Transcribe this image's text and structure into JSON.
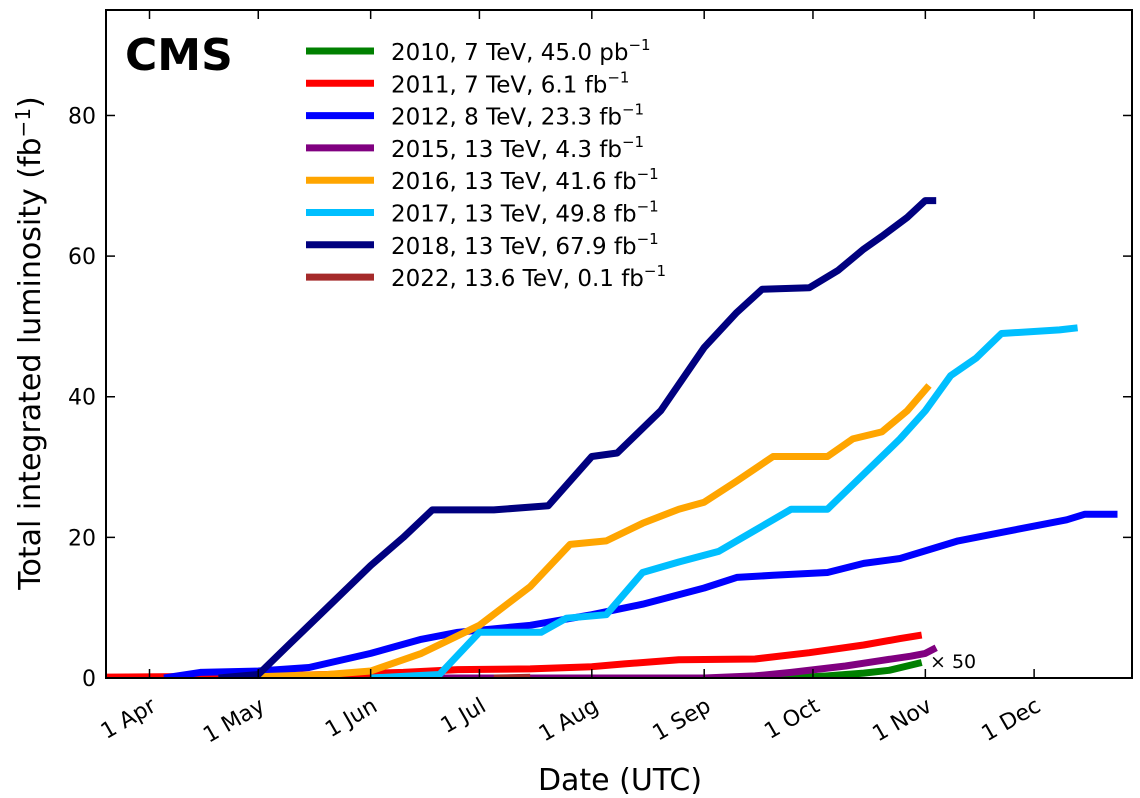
{
  "chart_data": {
    "type": "line",
    "label": "CMS",
    "xlabel": "Date (UTC)",
    "ylabel": "Total integrated luminosity (fb",
    "ylabel_sup": "−1",
    "ylabel_close": ")",
    "xlim": [
      "2000-03-20",
      "2000-12-28"
    ],
    "ylim": [
      0,
      95
    ],
    "x_ticks": [
      {
        "date": "2000-04-01",
        "label": "1 Apr"
      },
      {
        "date": "2000-05-01",
        "label": "1 May"
      },
      {
        "date": "2000-06-01",
        "label": "1 Jun"
      },
      {
        "date": "2000-07-01",
        "label": "1 Jul"
      },
      {
        "date": "2000-08-01",
        "label": "1 Aug"
      },
      {
        "date": "2000-09-01",
        "label": "1 Sep"
      },
      {
        "date": "2000-10-01",
        "label": "1 Oct"
      },
      {
        "date": "2000-11-01",
        "label": "1 Nov"
      },
      {
        "date": "2000-12-01",
        "label": "1 Dec"
      }
    ],
    "y_ticks": [
      0,
      20,
      40,
      60,
      80
    ],
    "legend_placement": "top",
    "annotation": "× 50",
    "series": [
      {
        "name": "2010, 7 TeV, 45.0 pb",
        "unit_sup": "−1",
        "color": "#008000",
        "points": [
          [
            "2000-03-30",
            0
          ],
          [
            "2000-09-25",
            0
          ],
          [
            "2000-10-05",
            0.3
          ],
          [
            "2000-10-15",
            0.7
          ],
          [
            "2000-10-22",
            1.1
          ],
          [
            "2000-10-27",
            1.7
          ],
          [
            "2000-10-31",
            2.2
          ]
        ]
      },
      {
        "name": "2011, 7 TeV, 6.1 fb",
        "unit_sup": "−1",
        "color": "#ff0000",
        "points": [
          [
            "2000-03-13",
            0.1
          ],
          [
            "2000-05-03",
            0.3
          ],
          [
            "2000-05-20",
            0.5
          ],
          [
            "2000-06-10",
            0.8
          ],
          [
            "2000-06-25",
            1.2
          ],
          [
            "2000-07-15",
            1.3
          ],
          [
            "2000-08-01",
            1.6
          ],
          [
            "2000-08-10",
            2.0
          ],
          [
            "2000-08-25",
            2.6
          ],
          [
            "2000-09-15",
            2.7
          ],
          [
            "2000-09-30",
            3.6
          ],
          [
            "2000-10-15",
            4.7
          ],
          [
            "2000-10-25",
            5.6
          ],
          [
            "2000-10-31",
            6.1
          ]
        ]
      },
      {
        "name": "2012, 8 TeV, 23.3 fb",
        "unit_sup": "−1",
        "color": "#0000ff",
        "points": [
          [
            "2000-04-05",
            0
          ],
          [
            "2000-04-15",
            0.8
          ],
          [
            "2000-05-01",
            1.0
          ],
          [
            "2000-05-15",
            1.5
          ],
          [
            "2000-06-01",
            3.5
          ],
          [
            "2000-06-15",
            5.5
          ],
          [
            "2000-06-25",
            6.5
          ],
          [
            "2000-07-01",
            6.8
          ],
          [
            "2000-07-15",
            7.5
          ],
          [
            "2000-08-01",
            9.0
          ],
          [
            "2000-08-15",
            10.5
          ],
          [
            "2000-09-01",
            12.8
          ],
          [
            "2000-09-10",
            14.3
          ],
          [
            "2000-09-20",
            14.6
          ],
          [
            "2000-10-05",
            15.0
          ],
          [
            "2000-10-15",
            16.3
          ],
          [
            "2000-10-25",
            17.0
          ],
          [
            "2000-11-10",
            19.5
          ],
          [
            "2000-11-25",
            21.0
          ],
          [
            "2000-12-10",
            22.5
          ],
          [
            "2000-12-15",
            23.3
          ],
          [
            "2000-12-24",
            23.3
          ]
        ]
      },
      {
        "name": "2015, 13 TeV, 4.3 fb",
        "unit_sup": "−1",
        "color": "#800080",
        "points": [
          [
            "2000-06-01",
            0
          ],
          [
            "2000-09-01",
            0
          ],
          [
            "2000-09-15",
            0.3
          ],
          [
            "2000-09-25",
            0.8
          ],
          [
            "2000-10-10",
            1.7
          ],
          [
            "2000-10-20",
            2.5
          ],
          [
            "2000-10-28",
            3.1
          ],
          [
            "2000-11-01",
            3.5
          ],
          [
            "2000-11-04",
            4.3
          ]
        ]
      },
      {
        "name": "2016, 13 TeV, 41.6 fb",
        "unit_sup": "−1",
        "color": "#ffa500",
        "points": [
          [
            "2000-04-20",
            0
          ],
          [
            "2000-05-20",
            0.5
          ],
          [
            "2000-06-01",
            1.0
          ],
          [
            "2000-06-15",
            3.5
          ],
          [
            "2000-07-01",
            7.5
          ],
          [
            "2000-07-15",
            13.0
          ],
          [
            "2000-07-26",
            19.0
          ],
          [
            "2000-08-05",
            19.5
          ],
          [
            "2000-08-15",
            22.0
          ],
          [
            "2000-08-25",
            24.0
          ],
          [
            "2000-09-01",
            25.0
          ],
          [
            "2000-09-10",
            28.0
          ],
          [
            "2000-09-20",
            31.5
          ],
          [
            "2000-10-05",
            31.5
          ],
          [
            "2000-10-12",
            34.0
          ],
          [
            "2000-10-20",
            35.0
          ],
          [
            "2000-10-27",
            38.0
          ],
          [
            "2000-11-02",
            41.6
          ]
        ]
      },
      {
        "name": "2017, 13 TeV, 49.8 fb",
        "unit_sup": "−1",
        "color": "#00bfff",
        "points": [
          [
            "2000-06-01",
            0
          ],
          [
            "2000-06-20",
            0.5
          ],
          [
            "2000-07-01",
            6.5
          ],
          [
            "2000-07-18",
            6.5
          ],
          [
            "2000-07-25",
            8.5
          ],
          [
            "2000-08-05",
            9.0
          ],
          [
            "2000-08-15",
            15.0
          ],
          [
            "2000-08-25",
            16.5
          ],
          [
            "2000-09-05",
            18.0
          ],
          [
            "2000-09-15",
            21.0
          ],
          [
            "2000-09-25",
            24.0
          ],
          [
            "2000-10-05",
            24.0
          ],
          [
            "2000-10-15",
            29.0
          ],
          [
            "2000-10-25",
            34.0
          ],
          [
            "2000-11-01",
            38.0
          ],
          [
            "2000-11-08",
            43.0
          ],
          [
            "2000-11-15",
            45.5
          ],
          [
            "2000-11-22",
            49.0
          ],
          [
            "2000-12-08",
            49.5
          ],
          [
            "2000-12-13",
            49.8
          ]
        ]
      },
      {
        "name": "2018, 13 TeV, 67.9 fb",
        "unit_sup": "−1",
        "color": "#00007f",
        "points": [
          [
            "2000-04-20",
            0
          ],
          [
            "2000-05-01",
            0.5
          ],
          [
            "2000-05-10",
            5.0
          ],
          [
            "2000-05-20",
            10.0
          ],
          [
            "2000-06-01",
            16.0
          ],
          [
            "2000-06-10",
            20.0
          ],
          [
            "2000-06-18",
            23.9
          ],
          [
            "2000-07-05",
            23.9
          ],
          [
            "2000-07-20",
            24.5
          ],
          [
            "2000-08-01",
            31.5
          ],
          [
            "2000-08-08",
            32.0
          ],
          [
            "2000-08-20",
            38.0
          ],
          [
            "2000-09-01",
            47.0
          ],
          [
            "2000-09-10",
            52.0
          ],
          [
            "2000-09-17",
            55.3
          ],
          [
            "2000-09-30",
            55.5
          ],
          [
            "2000-10-08",
            58.0
          ],
          [
            "2000-10-15",
            61.0
          ],
          [
            "2000-10-20",
            62.8
          ],
          [
            "2000-10-27",
            65.5
          ],
          [
            "2000-11-01",
            67.9
          ],
          [
            "2000-11-04",
            67.9
          ]
        ]
      },
      {
        "name": "2022, 13.6 TeV, 0.1 fb",
        "unit_sup": "−1",
        "color": "#a52a2a",
        "points": [
          [
            "2000-07-05",
            0
          ],
          [
            "2000-07-15",
            0.1
          ]
        ]
      }
    ]
  }
}
